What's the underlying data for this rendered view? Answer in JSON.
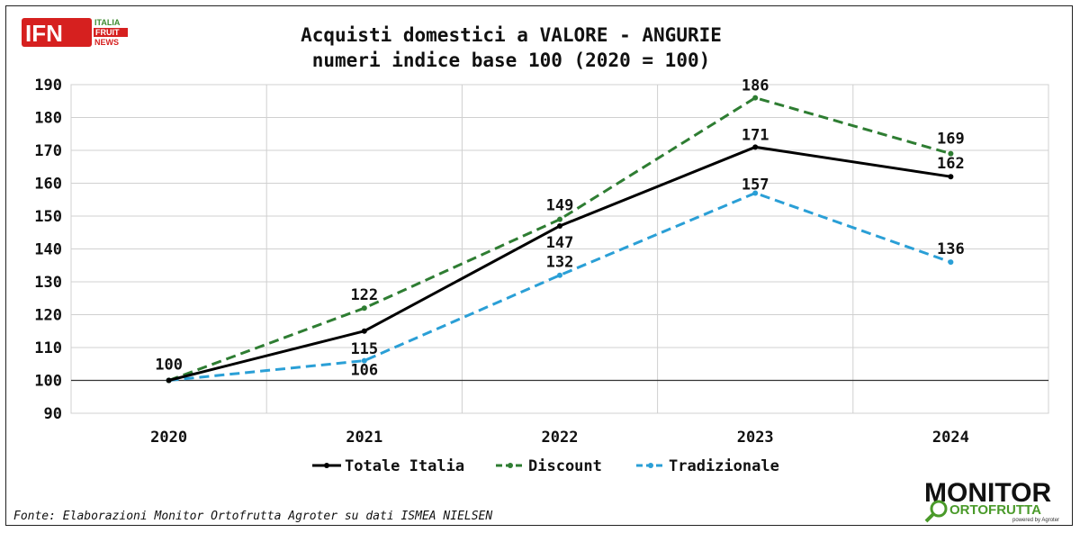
{
  "logos": {
    "ifn": {
      "mark": "IFN",
      "line1": "ITALIA",
      "line2": "FRUIT",
      "line3": "NEWS",
      "red": "#d6201f",
      "green": "#3d8b2f"
    },
    "monitor": {
      "word1": "MONITOR",
      "word2": "ORTOFRUTTA",
      "tagline": "powered by Agroter",
      "green": "#4a9a2a"
    }
  },
  "source_note": "Fonte: Elaborazioni Monitor Ortofrutta Agroter su dati ISMEA NIELSEN",
  "chart_data": {
    "type": "line",
    "title": "Acquisti domestici a VALORE - ANGURIE",
    "subtitle": "numeri indice base 100 (2020 = 100)",
    "categories": [
      "2020",
      "2021",
      "2022",
      "2023",
      "2024"
    ],
    "ylim": [
      90,
      190
    ],
    "yticks": [
      90,
      100,
      110,
      120,
      130,
      140,
      150,
      160,
      170,
      180,
      190
    ],
    "baseline": 100,
    "grid": true,
    "legend_position": "bottom",
    "series": [
      {
        "name": "Totale Italia",
        "values": [
          100,
          115,
          147,
          171,
          162
        ],
        "labels": [
          "100",
          "115",
          "147",
          "171",
          "162"
        ],
        "color": "#000000",
        "dash": "solid"
      },
      {
        "name": "Discount",
        "values": [
          100,
          122,
          149,
          186,
          169
        ],
        "labels": [
          "",
          "122",
          "149",
          "186",
          "169"
        ],
        "color": "#2e7d32",
        "dash": "dashed"
      },
      {
        "name": "Tradizionale",
        "values": [
          100,
          106,
          132,
          157,
          136
        ],
        "labels": [
          "",
          "106",
          "132",
          "157",
          "136"
        ],
        "color": "#2a9fd6",
        "dash": "dashed"
      }
    ]
  }
}
